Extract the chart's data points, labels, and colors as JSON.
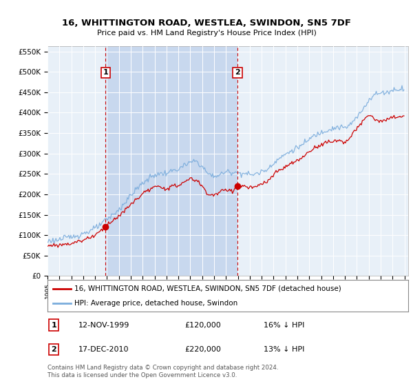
{
  "title": "16, WHITTINGTON ROAD, WESTLEA, SWINDON, SN5 7DF",
  "subtitle": "Price paid vs. HM Land Registry's House Price Index (HPI)",
  "plot_bg_color": "#e8f0f8",
  "shaded_region_color": "#c8d8ee",
  "red_line_label": "16, WHITTINGTON ROAD, WESTLEA, SWINDON, SN5 7DF (detached house)",
  "blue_line_label": "HPI: Average price, detached house, Swindon",
  "sale1_date": "12-NOV-1999",
  "sale1_price": "£120,000",
  "sale1_hpi": "16% ↓ HPI",
  "sale1_year": 1999.87,
  "sale1_value": 120000,
  "sale2_date": "17-DEC-2010",
  "sale2_price": "£220,000",
  "sale2_hpi": "13% ↓ HPI",
  "sale2_year": 2010.96,
  "sale2_value": 220000,
  "ylim": [
    0,
    562500
  ],
  "yticks": [
    0,
    50000,
    100000,
    150000,
    200000,
    250000,
    300000,
    350000,
    400000,
    450000,
    500000,
    550000
  ],
  "ytick_labels": [
    "£0",
    "£50K",
    "£100K",
    "£150K",
    "£200K",
    "£250K",
    "£300K",
    "£350K",
    "£400K",
    "£450K",
    "£500K",
    "£550K"
  ],
  "footer": "Contains HM Land Registry data © Crown copyright and database right 2024.\nThis data is licensed under the Open Government Licence v3.0.",
  "red_color": "#cc0000",
  "blue_color": "#7aacdc",
  "vline_color": "#cc0000",
  "marker_size": 6
}
